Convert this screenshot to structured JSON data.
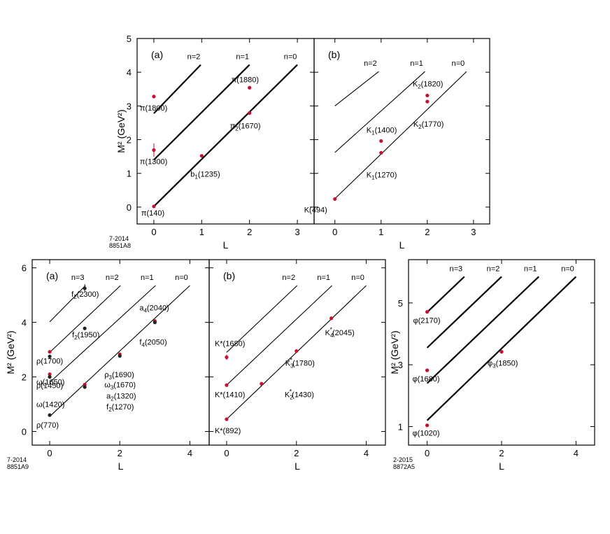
{
  "chart_data": [
    {
      "type": "scatter",
      "panel": "(a)",
      "xlabel": "L",
      "ylabel": "M² (GeV²)",
      "xticks": [
        0,
        1,
        2,
        3
      ],
      "yticks": [
        0,
        1,
        2,
        3,
        4,
        5
      ],
      "xlim": [
        -0.35,
        3.35
      ],
      "ylim": [
        -0.5,
        5
      ],
      "trajectories": [
        {
          "name": "n=2",
          "x0": 0,
          "y0": 2.78,
          "x1": 0.98,
          "y1": 4.22,
          "bold": true
        },
        {
          "name": "n=1",
          "x0": 0,
          "y0": 1.4,
          "x1": 2.0,
          "y1": 4.22,
          "bold": true
        },
        {
          "name": "n=0",
          "x0": 0,
          "y0": 0.02,
          "x1": 3.0,
          "y1": 4.22,
          "bold": true
        }
      ],
      "points": [
        {
          "x": 0,
          "y": 3.28,
          "label": "π(1800)",
          "color": "#c8102e"
        },
        {
          "x": 0,
          "y": 1.69,
          "label": "π(1300)",
          "color": "#c8102e",
          "err": 0.2
        },
        {
          "x": 0,
          "y": 0.02,
          "label": "π(140)",
          "color": "#c8102e"
        },
        {
          "x": 1,
          "y": 1.52,
          "label": "b1(1235)",
          "color": "#c8102e"
        },
        {
          "x": 2,
          "y": 3.54,
          "label": "π(1880)",
          "color": "#c8102e"
        },
        {
          "x": 2,
          "y": 2.79,
          "label": "π2(1670)",
          "color": "#c8102e"
        }
      ],
      "footnote": [
        "7-2014",
        "8851A8"
      ]
    },
    {
      "type": "scatter",
      "panel": "(b)",
      "xlabel": "L",
      "ylabel": "",
      "xticks": [
        0,
        1,
        2,
        3
      ],
      "yticks": [
        0,
        1,
        2,
        3,
        4,
        5
      ],
      "xlim": [
        -0.45,
        3.35
      ],
      "ylim": [
        -0.5,
        5
      ],
      "trajectories": [
        {
          "name": "n=2",
          "x0": 0,
          "y0": 3.0,
          "x1": 0.95,
          "y1": 4.02,
          "bold": false
        },
        {
          "name": "n=1",
          "x0": 0,
          "y0": 1.62,
          "x1": 1.95,
          "y1": 4.02,
          "bold": false
        },
        {
          "name": "n=0",
          "x0": 0,
          "y0": 0.25,
          "x1": 2.85,
          "y1": 4.02,
          "bold": false
        }
      ],
      "points": [
        {
          "x": 0,
          "y": 0.24,
          "label": "K(494)",
          "color": "#c8102e"
        },
        {
          "x": 1,
          "y": 1.96,
          "label": "K1(1400)",
          "color": "#c8102e"
        },
        {
          "x": 1,
          "y": 1.61,
          "label": "K1(1270)",
          "color": "#c8102e"
        },
        {
          "x": 2,
          "y": 3.31,
          "label": "K2(1820)",
          "color": "#c8102e"
        },
        {
          "x": 2,
          "y": 3.13,
          "label": "K2(1770)",
          "color": "#c8102e"
        }
      ]
    },
    {
      "type": "scatter",
      "panel": "(a)",
      "xlabel": "L",
      "ylabel": "M² (GeV²)",
      "xticks": [
        0,
        2,
        4
      ],
      "yticks": [
        0,
        2,
        4,
        6
      ],
      "xlim": [
        -0.5,
        4.55
      ],
      "ylim": [
        -0.5,
        6.3
      ],
      "trajectories": [
        {
          "name": "n=3",
          "x0": 0,
          "y0": 4.02,
          "x1": 1.02,
          "y1": 5.35,
          "bold": false
        },
        {
          "name": "n=2",
          "x0": 0,
          "y0": 2.9,
          "x1": 2.02,
          "y1": 5.35,
          "bold": false
        },
        {
          "name": "n=1",
          "x0": 0,
          "y0": 1.8,
          "x1": 3.02,
          "y1": 5.35,
          "bold": false
        },
        {
          "name": "n=0",
          "x0": 0,
          "y0": 0.55,
          "x1": 4.0,
          "y1": 5.35,
          "bold": false
        }
      ],
      "points": [
        {
          "x": 0,
          "y": 0.6,
          "label": "ρ(770)",
          "color": "#222222"
        },
        {
          "x": 0,
          "y": 2.1,
          "label": "ρ(1450)",
          "color": "#c8102e"
        },
        {
          "x": 0,
          "y": 2.0,
          "label": "ω(1420)",
          "color": "#222222"
        },
        {
          "x": 0,
          "y": 2.92,
          "label": "ρ(1700)",
          "color": "#c8102e"
        },
        {
          "x": 0,
          "y": 2.75,
          "label": "ω(1650)",
          "color": "#222222"
        },
        {
          "x": 1,
          "y": 1.72,
          "label": "a2(1320)",
          "color": "#c8102e"
        },
        {
          "x": 1,
          "y": 1.63,
          "label": "f2(1270)",
          "color": "#222222"
        },
        {
          "x": 1,
          "y": 3.78,
          "label": "f2(1950)",
          "color": "#222222"
        },
        {
          "x": 1,
          "y": 5.25,
          "label": "f2(2300)",
          "color": "#222222",
          "err": 0.15
        },
        {
          "x": 2,
          "y": 2.83,
          "label": "ρ3(1690)",
          "color": "#c8102e"
        },
        {
          "x": 2,
          "y": 2.77,
          "label": "ω3(1670)",
          "color": "#222222"
        },
        {
          "x": 3,
          "y": 4.05,
          "label": "a4(2040)",
          "color": "#c8102e"
        },
        {
          "x": 3,
          "y": 4.0,
          "label": "f4(2050)",
          "color": "#222222"
        }
      ],
      "footnote": [
        "7-2014",
        "8851A9"
      ]
    },
    {
      "type": "scatter",
      "panel": "(b)",
      "xlabel": "L",
      "ylabel": "",
      "xticks": [
        0,
        2,
        4
      ],
      "yticks": [
        0,
        2,
        4,
        6
      ],
      "xlim": [
        -0.5,
        4.55
      ],
      "ylim": [
        -0.5,
        6.3
      ],
      "trajectories": [
        {
          "name": "n=2",
          "x0": 0,
          "y0": 2.9,
          "x1": 2.02,
          "y1": 5.35,
          "bold": false
        },
        {
          "name": "n=1",
          "x0": 0,
          "y0": 1.7,
          "x1": 3.02,
          "y1": 5.35,
          "bold": false
        },
        {
          "name": "n=0",
          "x0": 0,
          "y0": 0.45,
          "x1": 4.0,
          "y1": 5.35,
          "bold": false
        }
      ],
      "points": [
        {
          "x": 0,
          "y": 0.45,
          "label": "K*(892)",
          "color": "#c8102e"
        },
        {
          "x": 0,
          "y": 1.7,
          "label": "K*(1410)",
          "color": "#c8102e"
        },
        {
          "x": 0,
          "y": 2.72,
          "label": "K*(1680)",
          "color": "#c8102e",
          "err": 0.1
        },
        {
          "x": 1,
          "y": 1.75,
          "label": "K2*(1430)",
          "color": "#c8102e"
        },
        {
          "x": 2,
          "y": 2.95,
          "label": "K3*(1780)",
          "color": "#c8102e"
        },
        {
          "x": 3,
          "y": 4.15,
          "label": "K4*(2045)",
          "color": "#c8102e"
        }
      ]
    },
    {
      "type": "scatter",
      "panel": "",
      "xlabel": "L",
      "ylabel": "M² (GeV²)",
      "xticks": [
        0,
        2,
        4
      ],
      "yticks": [
        1,
        3,
        5
      ],
      "xlim": [
        -0.5,
        4.5
      ],
      "ylim": [
        0.4,
        6.4
      ],
      "trajectories": [
        {
          "name": "n=3",
          "x0": 0,
          "y0": 4.7,
          "x1": 1.0,
          "y1": 5.85,
          "bold": true
        },
        {
          "name": "n=2",
          "x0": 0,
          "y0": 3.55,
          "x1": 2.0,
          "y1": 5.85,
          "bold": true
        },
        {
          "name": "n=1",
          "x0": 0,
          "y0": 2.4,
          "x1": 3.0,
          "y1": 5.85,
          "bold": true
        },
        {
          "name": "n=0",
          "x0": 0,
          "y0": 1.2,
          "x1": 4.0,
          "y1": 5.85,
          "bold": true
        }
      ],
      "points": [
        {
          "x": 0,
          "y": 1.04,
          "label": "φ(1020)",
          "color": "#c8102e"
        },
        {
          "x": 0,
          "y": 2.82,
          "label": "φ(1680)",
          "color": "#c8102e"
        },
        {
          "x": 0,
          "y": 4.71,
          "label": "φ(2170)",
          "color": "#c8102e"
        },
        {
          "x": 2,
          "y": 3.42,
          "label": "φ3(1850)",
          "color": "#c8102e"
        }
      ],
      "footnote": [
        "2-2015",
        "8872A5"
      ]
    }
  ]
}
